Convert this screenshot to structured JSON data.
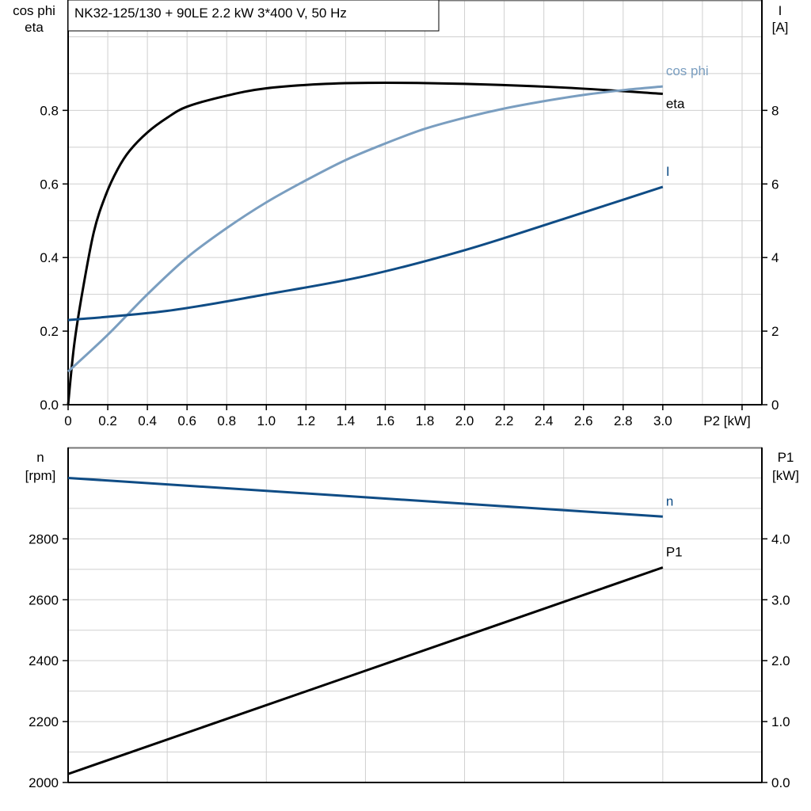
{
  "title": "NK32-125/130 + 90LE   2.2 kW   3*400 V, 50 Hz",
  "colors": {
    "eta": "#000000",
    "cos_phi": "#7a9ec0",
    "I": "#0f4c85",
    "n": "#0f4c85",
    "P1": "#000000",
    "grid": "#cfcfcf"
  },
  "chart_data": [
    {
      "type": "line",
      "xlabel": "P2 [kW]",
      "ylabel_left": [
        "cos phi",
        "eta"
      ],
      "ylabel_right": [
        "I",
        "[A]"
      ],
      "xlim": [
        0,
        3.5
      ],
      "ylim_left": [
        0,
        1.1
      ],
      "ylim_right": [
        0,
        11
      ],
      "grid": true,
      "x_ticks": [
        "0",
        "0.2",
        "0.4",
        "0.6",
        "0.8",
        "1.0",
        "1.2",
        "1.4",
        "1.6",
        "1.8",
        "2.0",
        "2.2",
        "2.4",
        "2.6",
        "2.8",
        "3.0"
      ],
      "y_ticks_left": [
        "0.0",
        "0.2",
        "0.4",
        "0.6",
        "0.8"
      ],
      "y_ticks_right": [
        "0",
        "2",
        "4",
        "6",
        "8"
      ],
      "series": [
        {
          "name": "eta",
          "axis": "left",
          "color_key": "eta",
          "x": [
            0,
            0.03,
            0.07,
            0.13,
            0.19,
            0.25,
            0.31,
            0.4,
            0.5,
            0.6,
            0.8,
            1.0,
            1.3,
            1.6,
            2.0,
            2.5,
            3.0
          ],
          "y": [
            0,
            0.16,
            0.3,
            0.47,
            0.57,
            0.64,
            0.69,
            0.74,
            0.78,
            0.81,
            0.84,
            0.86,
            0.872,
            0.875,
            0.872,
            0.862,
            0.845
          ]
        },
        {
          "name": "cos phi",
          "axis": "left",
          "color_key": "cos_phi",
          "x": [
            0,
            0.2,
            0.4,
            0.6,
            0.8,
            1.0,
            1.2,
            1.4,
            1.6,
            1.8,
            2.0,
            2.2,
            2.4,
            2.6,
            2.8,
            3.0
          ],
          "y": [
            0.09,
            0.19,
            0.3,
            0.4,
            0.48,
            0.55,
            0.61,
            0.665,
            0.71,
            0.75,
            0.78,
            0.805,
            0.825,
            0.842,
            0.855,
            0.865
          ]
        },
        {
          "name": "I",
          "axis": "right",
          "color_key": "I",
          "x": [
            0,
            0.5,
            1.0,
            1.5,
            2.0,
            2.5,
            3.0
          ],
          "y": [
            2.3,
            2.55,
            3.0,
            3.5,
            4.2,
            5.05,
            5.92
          ]
        }
      ]
    },
    {
      "type": "line",
      "xlim": [
        0,
        3.5
      ],
      "ylabel_left": [
        "n",
        "[rpm]"
      ],
      "ylabel_right": [
        "P1",
        "[kW]"
      ],
      "ylim_left": [
        2000,
        3100
      ],
      "ylim_right": [
        0,
        5.5
      ],
      "grid": true,
      "y_ticks_left": [
        "2000",
        "2200",
        "2400",
        "2600",
        "2800"
      ],
      "y_ticks_right": [
        "0.0",
        "1.0",
        "2.0",
        "3.0",
        "4.0"
      ],
      "series": [
        {
          "name": "n",
          "axis": "left",
          "color_key": "n",
          "x": [
            0,
            3.0
          ],
          "y": [
            3000,
            2873
          ]
        },
        {
          "name": "P1",
          "axis": "right",
          "color_key": "P1",
          "x": [
            0,
            3.0
          ],
          "y": [
            0.14,
            3.53
          ]
        }
      ]
    }
  ]
}
